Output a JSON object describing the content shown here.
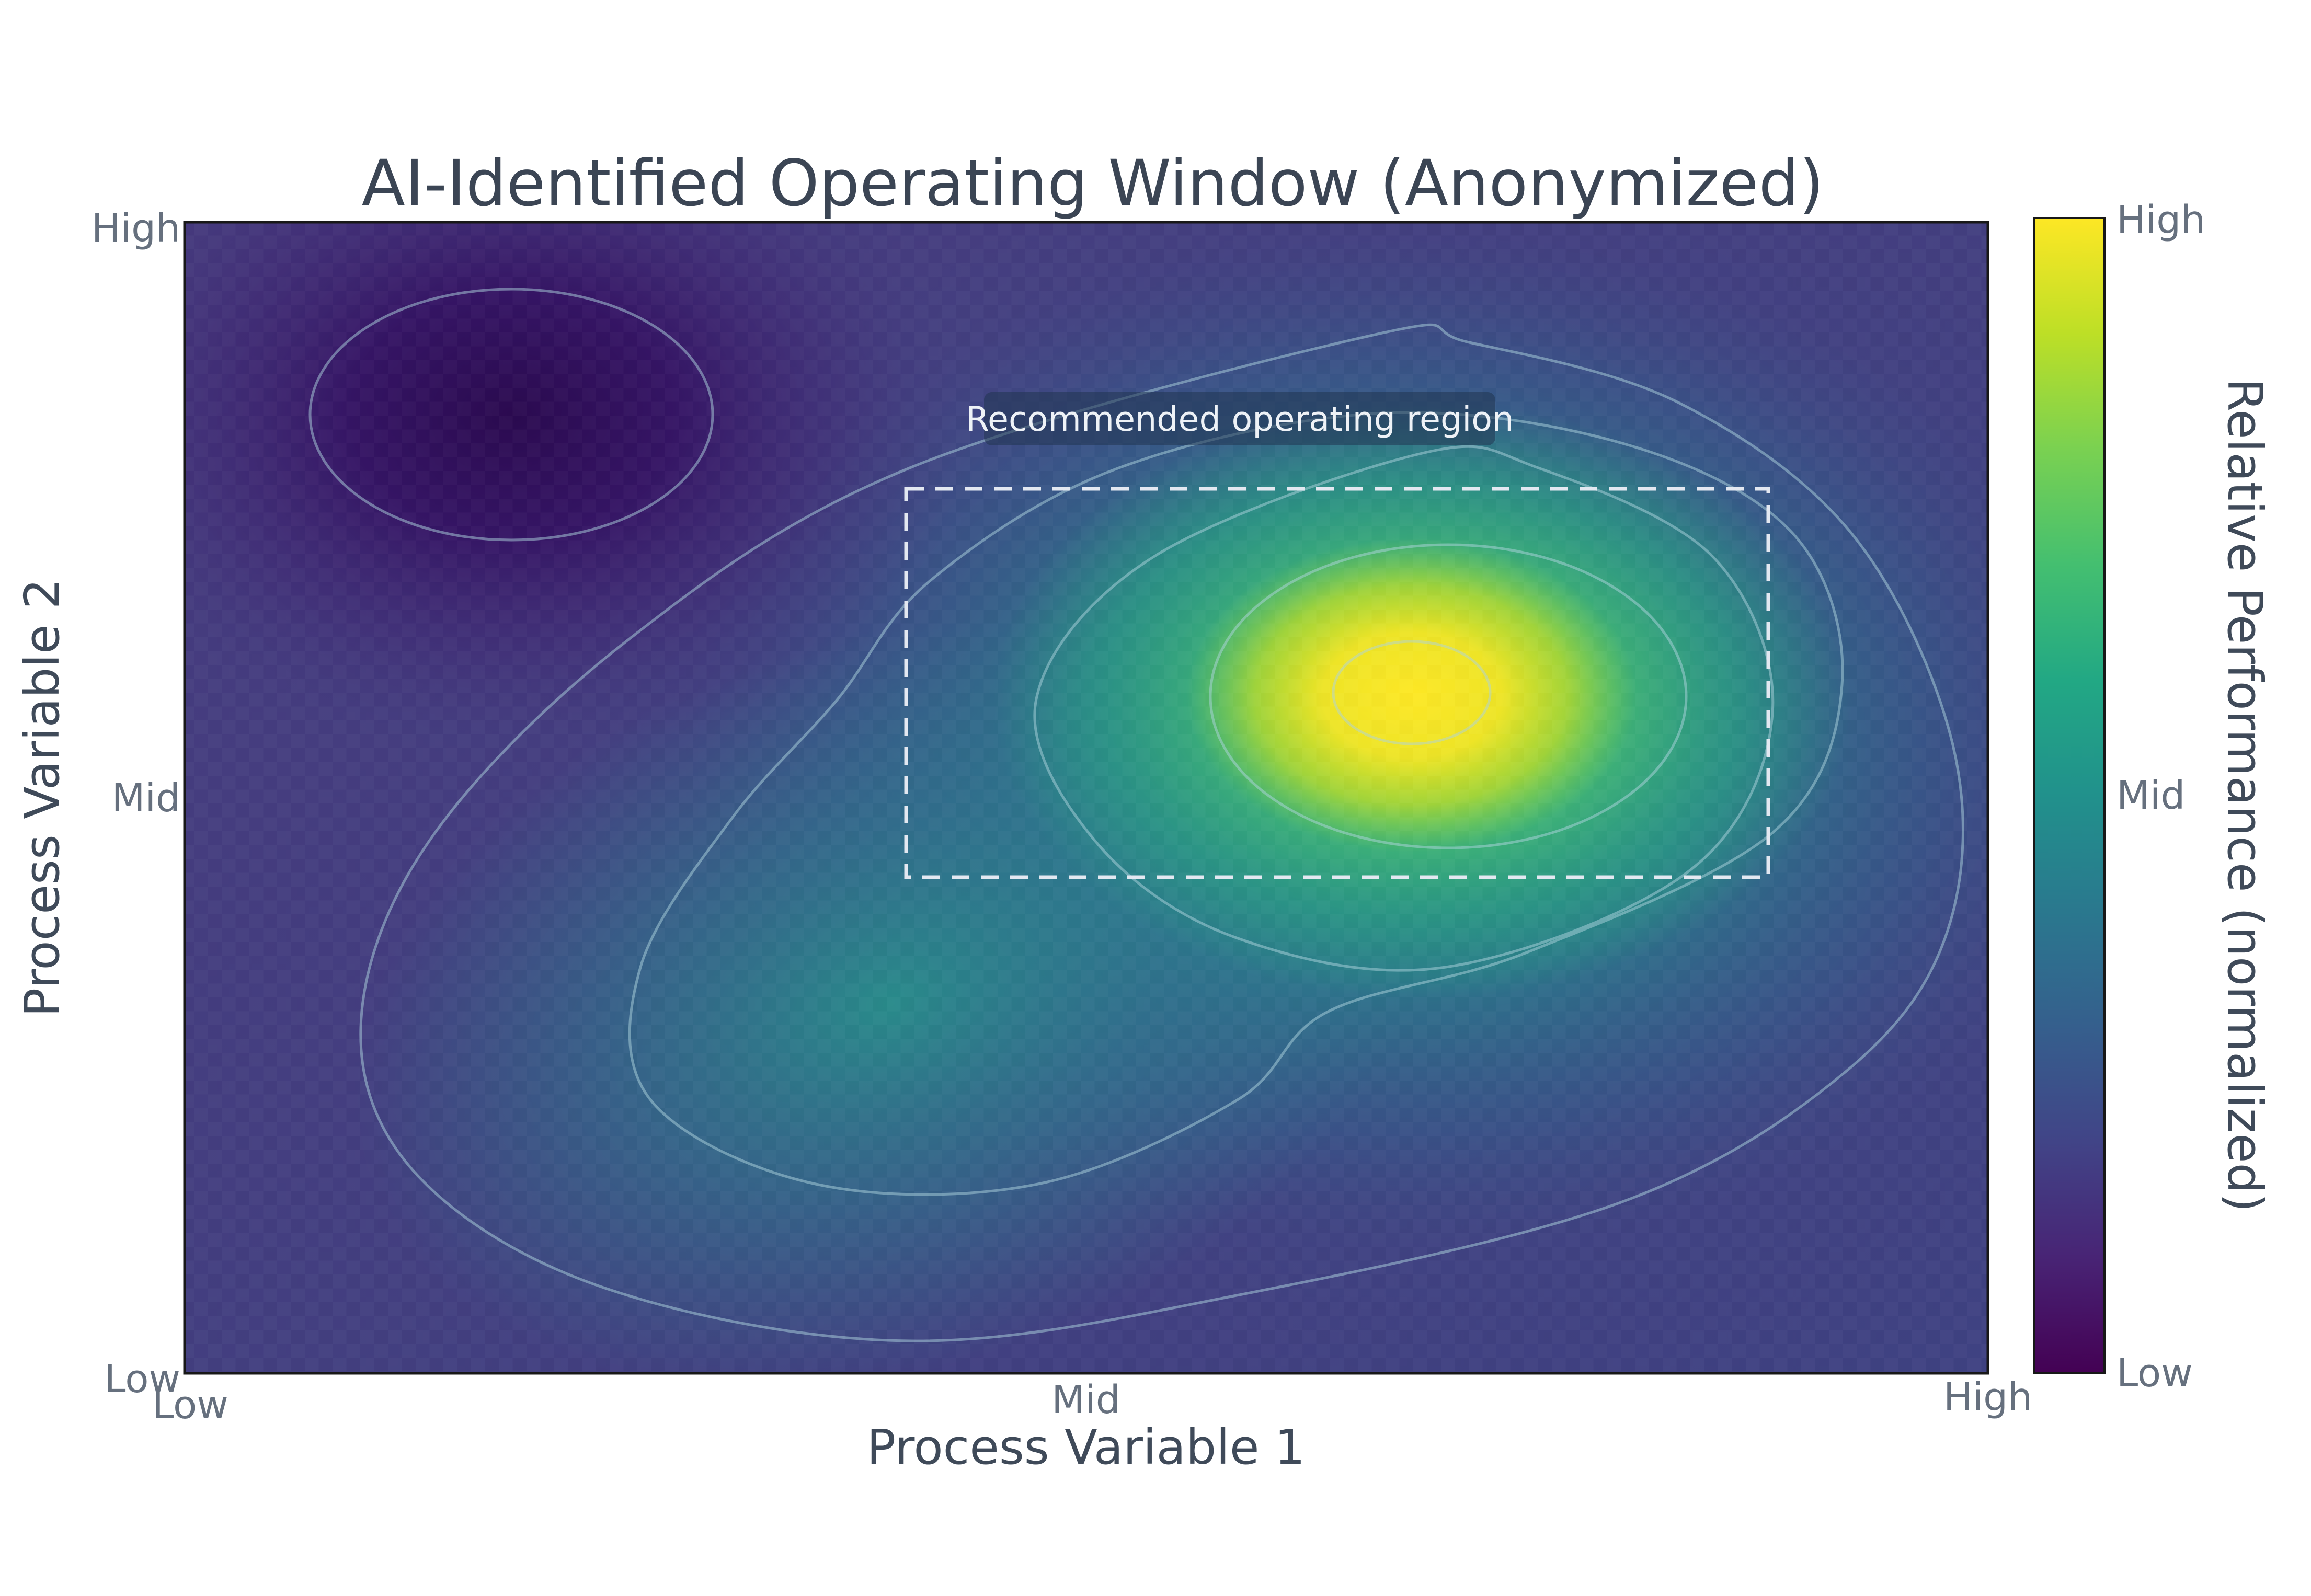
{
  "title": "AI-Identified Operating Window (Anonymized)",
  "axes": {
    "x": {
      "label": "Process Variable 1",
      "ticks": [
        "Low",
        "Mid",
        "High"
      ]
    },
    "y": {
      "label": "Process Variable 2",
      "ticks": [
        "Low",
        "Mid",
        "High"
      ]
    }
  },
  "colorbar": {
    "label": "Relative Performance (normalized)",
    "tick_top": "High",
    "tick_mid": "Mid",
    "tick_bottom": "Low",
    "colormap": "viridis"
  },
  "annotation": {
    "text": "Recommended operating region"
  },
  "colors": {
    "title_text": "#3b4554",
    "axis_label_text": "#3f4a59",
    "tick_text": "#66707e",
    "plot_border": "#181818",
    "contour_line": "#aed4de",
    "region_outline": "#e3e8f1",
    "annotation_bg": "#203450",
    "annotation_text": "#eef2f7",
    "heat_low": "#440154",
    "heat_mid": "#21918c",
    "heat_high": "#fde725"
  },
  "chart_data": {
    "type": "heatmap",
    "title": "AI-Identified Operating Window (Anonymized)",
    "xlabel": "Process Variable 1",
    "ylabel": "Process Variable 2",
    "x_ticks": [
      "Low",
      "Mid",
      "High"
    ],
    "x_tick_positions": [
      0,
      0.5,
      1
    ],
    "y_ticks": [
      "Low",
      "Mid",
      "High"
    ],
    "y_tick_positions": [
      0,
      0.5,
      1
    ],
    "grid": false,
    "colorbar": {
      "label": "Relative Performance (normalized)",
      "ticks": [
        "Low",
        "Mid",
        "High"
      ],
      "tick_positions": [
        0,
        0.5,
        1
      ],
      "colormap": "viridis",
      "viridis_stops": [
        "#440154",
        "#482475",
        "#414487",
        "#355f8d",
        "#2a788e",
        "#21918c",
        "#22a884",
        "#44bf70",
        "#7ad151",
        "#bddf26",
        "#fde725"
      ]
    },
    "surface": {
      "model": "normalized performance field on unit square; sum of 2D gaussian components over a flat background",
      "background_level": 0.3,
      "components": [
        {
          "role": "primary-optimum",
          "x": 0.68,
          "y": 0.59,
          "amplitude": 1.0,
          "sigma_x": 0.14,
          "sigma_y": 0.11
        },
        {
          "role": "secondary-ridge",
          "x": 0.39,
          "y": 0.31,
          "amplitude": 0.55,
          "sigma_x": 0.2,
          "sigma_y": 0.13
        },
        {
          "role": "poor-performance-zone",
          "x": 0.18,
          "y": 0.83,
          "amplitude": -0.6,
          "sigma_x": 0.12,
          "sigma_y": 0.1
        }
      ],
      "peak": {
        "x": 0.68,
        "y": 0.59,
        "value_label": "High"
      },
      "minimum": {
        "x": 0.18,
        "y": 0.83,
        "value_label": "Low"
      },
      "contour_lines_visible": 6
    },
    "recommended_region": {
      "label": "Recommended operating region",
      "x0": 0.4,
      "x1": 0.88,
      "y0": 0.43,
      "y1": 0.77
    }
  }
}
